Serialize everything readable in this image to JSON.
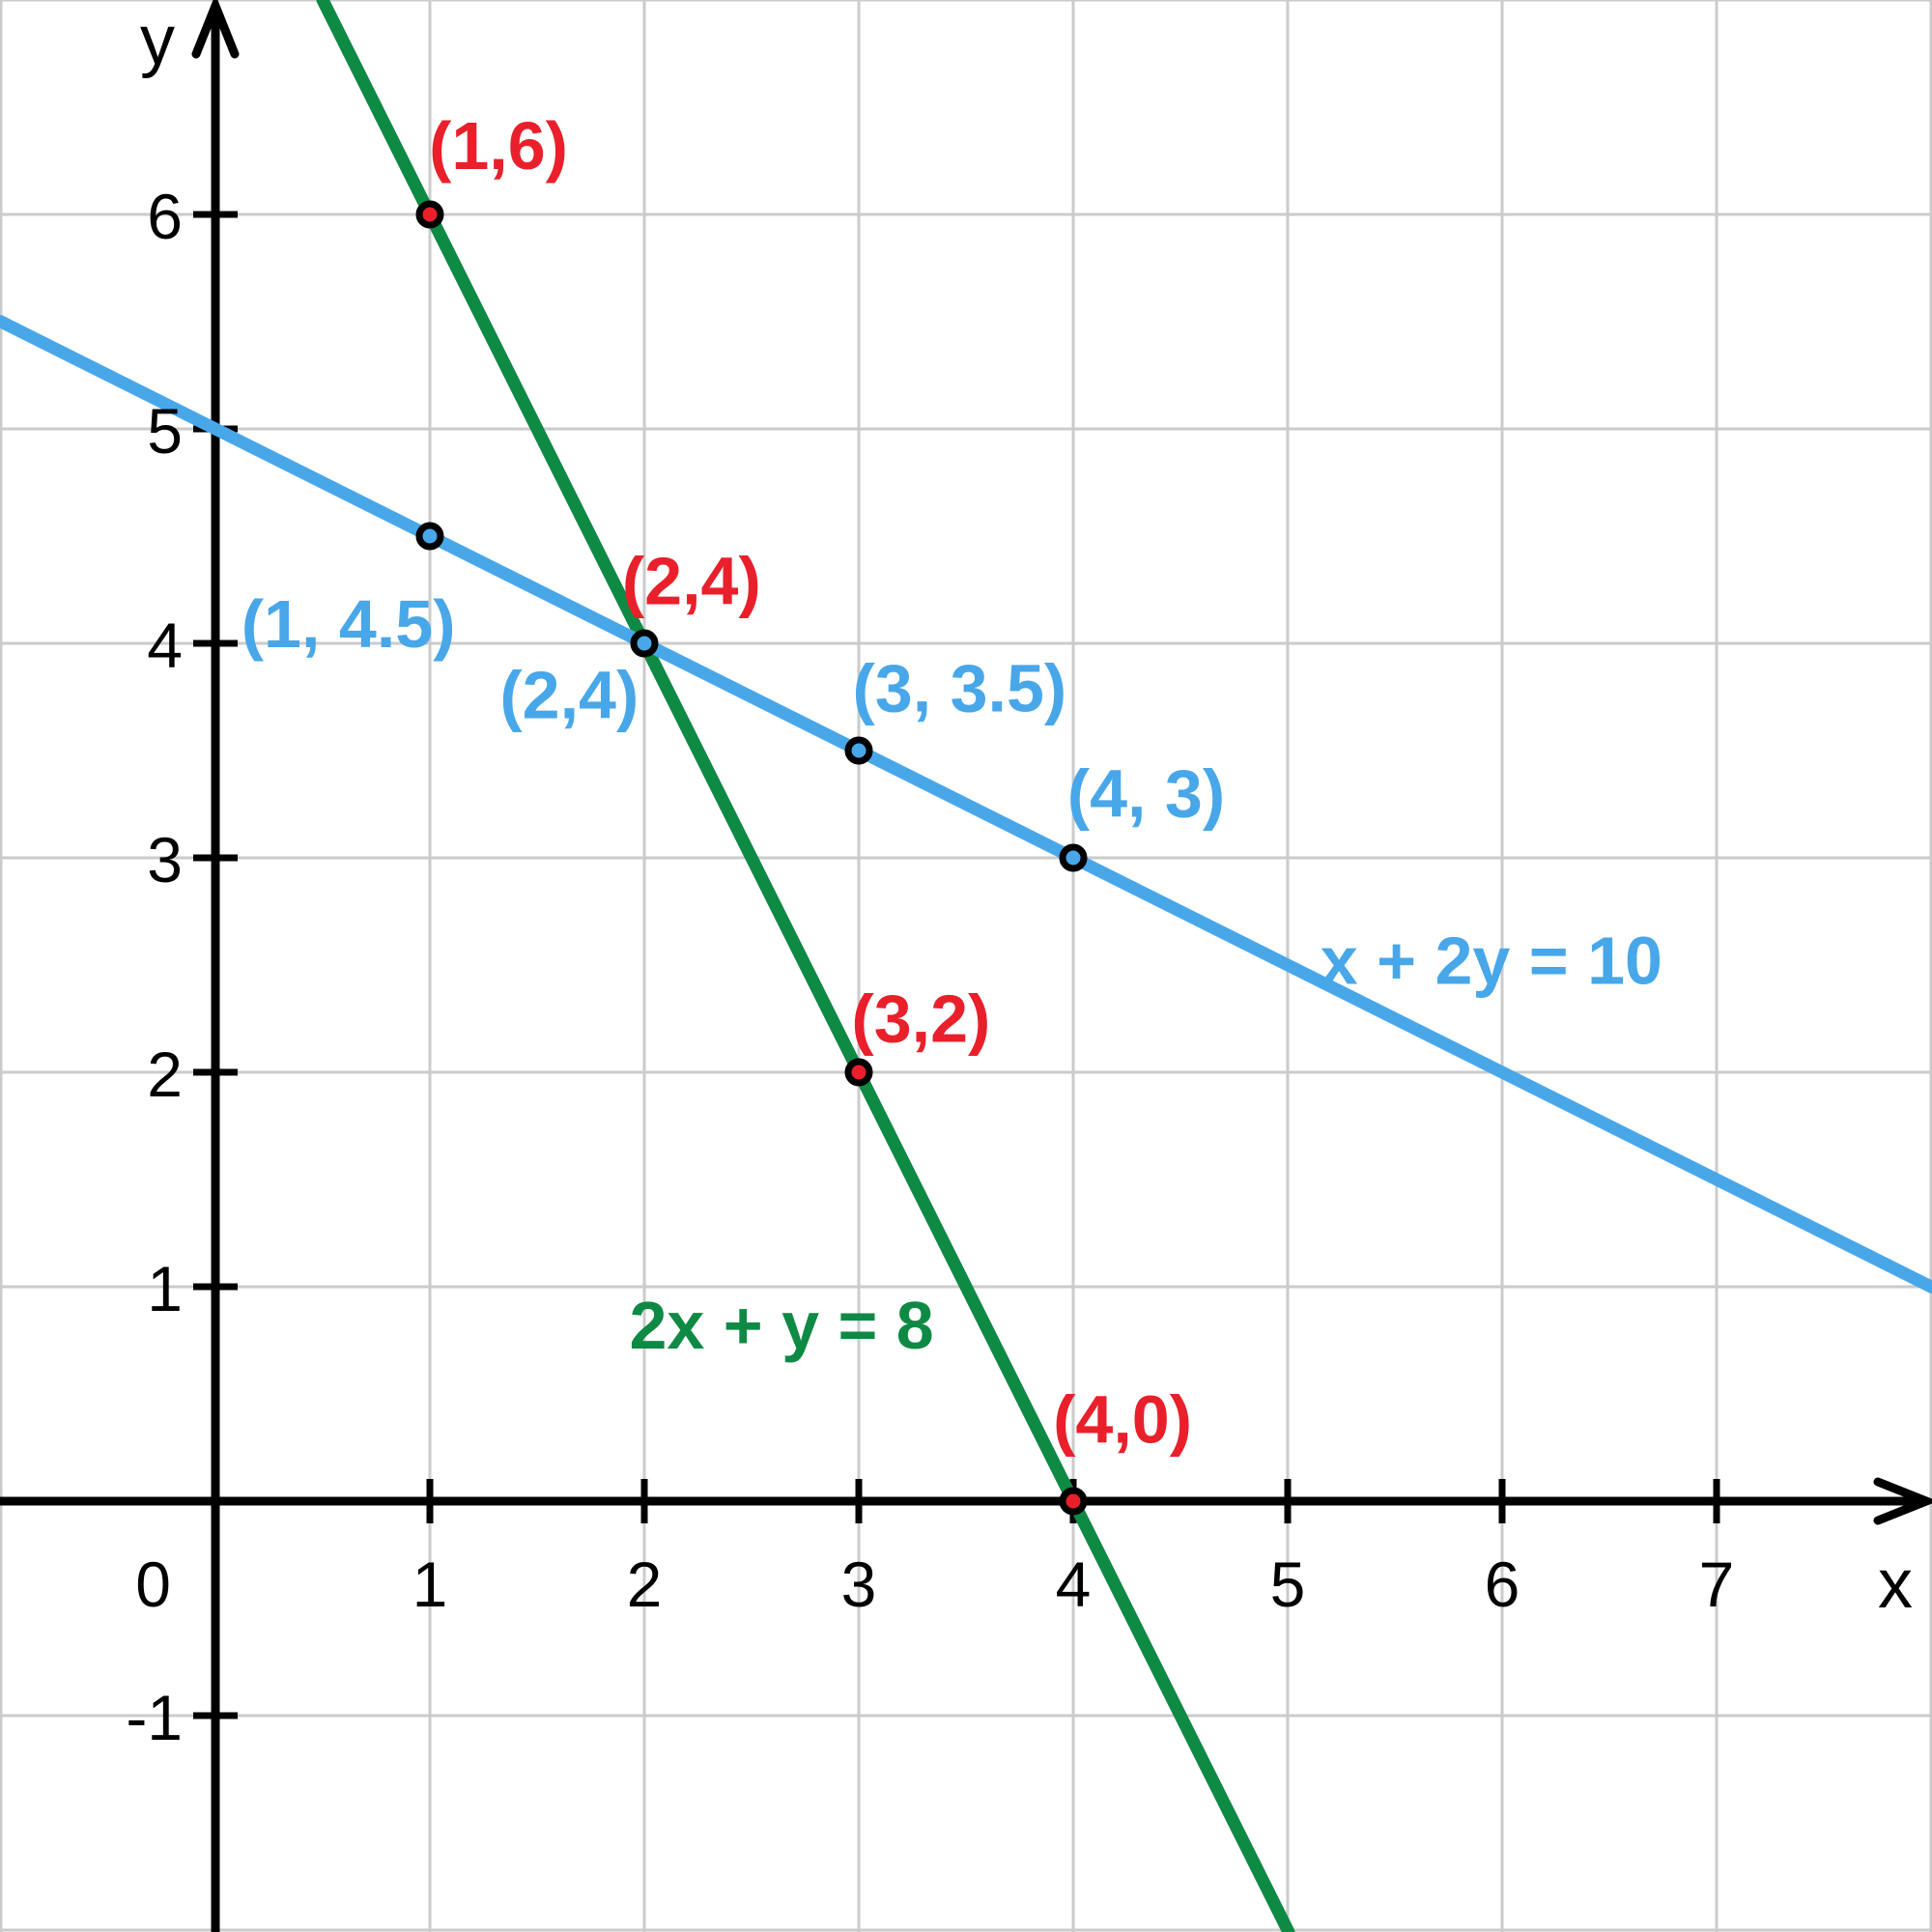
{
  "page": {
    "background": "#ffffff"
  },
  "chart_data": {
    "type": "line",
    "title": "",
    "description": "Graph of the linear system 2x + y = 8 and x + 2y = 10 on a coordinate grid with labeled solution points; the lines intersect at (2,4).",
    "axes": {
      "x_letter": "x",
      "y_letter": "y",
      "grid": true,
      "x_range_shown": [
        -1,
        8
      ],
      "y_range_shown": [
        -2,
        7
      ],
      "x_ticks": [
        {
          "v": 0,
          "label": "0"
        },
        {
          "v": 1,
          "label": "1"
        },
        {
          "v": 2,
          "label": "2"
        },
        {
          "v": 3,
          "label": "3"
        },
        {
          "v": 4,
          "label": "4"
        },
        {
          "v": 5,
          "label": "5"
        },
        {
          "v": 6,
          "label": "6"
        },
        {
          "v": 7,
          "label": "7"
        }
      ],
      "y_ticks": [
        {
          "v": 6,
          "label": "6"
        },
        {
          "v": 5,
          "label": "5"
        },
        {
          "v": 4,
          "label": "4"
        },
        {
          "v": 3,
          "label": "3"
        },
        {
          "v": 2,
          "label": "2"
        },
        {
          "v": 1,
          "label": "1"
        },
        {
          "v": -1,
          "label": "-1"
        }
      ]
    },
    "colors": {
      "red": "#e9202b",
      "green": "#0e8a44",
      "blue": "#48a7e9",
      "axis": "#000000",
      "grid": "#cbcbcb",
      "tick_text": "#000000"
    },
    "series": [
      {
        "name": "green-line",
        "equation": "2x + y = 8",
        "a": 2,
        "b": 1,
        "c": 8,
        "color_key": "green",
        "label_pos": {
          "x": 2.64,
          "y": 0.82
        },
        "marked_points": [
          [
            1,
            6
          ],
          [
            2,
            4
          ],
          [
            3,
            2
          ],
          [
            4,
            0
          ]
        ]
      },
      {
        "name": "blue-line",
        "equation": "x + 2y = 10",
        "a": 1,
        "b": 2,
        "c": 10,
        "color_key": "blue",
        "label_pos": {
          "x": 5.95,
          "y": 2.52
        },
        "marked_points": [
          [
            1,
            4.5
          ],
          [
            2,
            4
          ],
          [
            3,
            3.5
          ],
          [
            4,
            3
          ]
        ]
      }
    ],
    "points": [
      {
        "x": 1,
        "y": 6,
        "color_key": "red"
      },
      {
        "x": 3,
        "y": 2,
        "color_key": "red"
      },
      {
        "x": 4,
        "y": 0,
        "color_key": "red"
      },
      {
        "x": 1,
        "y": 4.5,
        "color_key": "blue"
      },
      {
        "x": 2,
        "y": 4,
        "color_key": "blue"
      },
      {
        "x": 3,
        "y": 3.5,
        "color_key": "blue"
      },
      {
        "x": 4,
        "y": 3,
        "color_key": "blue"
      }
    ],
    "point_labels": [
      {
        "text": "(1,6)",
        "color_key": "red",
        "x": 1.32,
        "y": 6.32
      },
      {
        "text": "(2,4)",
        "color_key": "red",
        "x": 2.22,
        "y": 4.29
      },
      {
        "text": "(3,2)",
        "color_key": "red",
        "x": 3.29,
        "y": 2.25
      },
      {
        "text": "(4,0)",
        "color_key": "red",
        "x": 4.23,
        "y": 0.38
      },
      {
        "text": "(1, 4.5)",
        "color_key": "blue",
        "x": 0.62,
        "y": 4.09
      },
      {
        "text": "(2,4)",
        "color_key": "blue",
        "x": 1.65,
        "y": 3.76
      },
      {
        "text": "(3, 3.5)",
        "color_key": "blue",
        "x": 3.47,
        "y": 3.79
      },
      {
        "text": "(4, 3)",
        "color_key": "blue",
        "x": 4.34,
        "y": 3.3
      }
    ]
  }
}
